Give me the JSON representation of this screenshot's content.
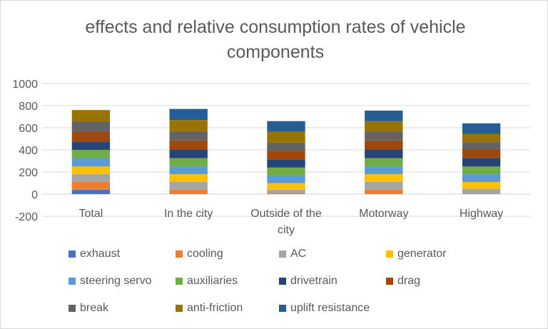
{
  "chart_data": {
    "type": "stacked-bar",
    "title": "effects and relative consumption rates of vehicle components",
    "categories": [
      "Total",
      "In the city",
      "Outside of the city",
      "Motorway",
      "Highway"
    ],
    "category_labels": [
      [
        "Total"
      ],
      [
        "In the city"
      ],
      [
        "Outside of the",
        "city"
      ],
      [
        "Motorway"
      ],
      [
        "Highway"
      ]
    ],
    "ylim": [
      -200,
      1000
    ],
    "yticks": [
      -200,
      0,
      200,
      400,
      600,
      800,
      1000
    ],
    "ytick_labels": [
      "-200",
      "0",
      "200",
      "400",
      "600",
      "800",
      "1000"
    ],
    "gridlines": true,
    "legend_position": "bottom",
    "series": [
      {
        "name": "exhaust",
        "color": "#4472c4",
        "values": [
          40,
          0,
          0,
          0,
          0
        ]
      },
      {
        "name": "cooling",
        "color": "#ed7d31",
        "values": [
          70,
          40,
          10,
          40,
          0
        ]
      },
      {
        "name": "AC",
        "color": "#a5a5a5",
        "values": [
          70,
          70,
          30,
          70,
          50
        ]
      },
      {
        "name": "generator",
        "color": "#ffc000",
        "values": [
          70,
          70,
          60,
          70,
          60
        ]
      },
      {
        "name": "steering servo",
        "color": "#5b9bd5",
        "values": [
          75,
          70,
          70,
          70,
          70
        ]
      },
      {
        "name": "auxiliaries",
        "color": "#70ad47",
        "values": [
          75,
          75,
          70,
          75,
          70
        ]
      },
      {
        "name": "drivetrain",
        "color": "#264478",
        "values": [
          75,
          75,
          75,
          75,
          75
        ]
      },
      {
        "name": "drag",
        "color": "#9e480e",
        "values": [
          90,
          85,
          75,
          85,
          75
        ]
      },
      {
        "name": "break",
        "color": "#636363",
        "values": [
          90,
          85,
          75,
          80,
          70
        ]
      },
      {
        "name": "anti-friction",
        "color": "#997300",
        "values": [
          105,
          100,
          100,
          95,
          75
        ]
      },
      {
        "name": "uplift resistance",
        "color": "#255e91",
        "values": [
          0,
          100,
          95,
          95,
          95
        ]
      }
    ]
  }
}
